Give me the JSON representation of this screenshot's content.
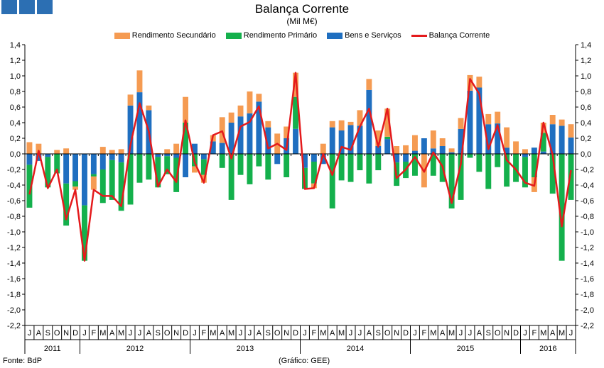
{
  "chart_data": {
    "type": "bar",
    "title": "Balança Corrente",
    "subtitle": "(Mil M€)",
    "ylim": [
      -2.2,
      1.4
    ],
    "ytick_step": 0.2,
    "grid": false,
    "legend_position": "top",
    "months": [
      "J",
      "A",
      "S",
      "O",
      "N",
      "D",
      "J",
      "F",
      "M",
      "A",
      "M",
      "J",
      "J",
      "A",
      "S",
      "O",
      "N",
      "D",
      "J",
      "F",
      "M",
      "A",
      "M",
      "J",
      "J",
      "A",
      "S",
      "O",
      "N",
      "D",
      "J",
      "F",
      "M",
      "A",
      "M",
      "J",
      "J",
      "A",
      "S",
      "O",
      "N",
      "D",
      "J",
      "F",
      "M",
      "A",
      "M",
      "J",
      "J",
      "A",
      "S",
      "O",
      "N",
      "D",
      "J",
      "F",
      "M",
      "A",
      "M",
      "J"
    ],
    "years": [
      {
        "label": "2011",
        "months": 6
      },
      {
        "label": "2012",
        "months": 12
      },
      {
        "label": "2013",
        "months": 12
      },
      {
        "label": "2014",
        "months": 12
      },
      {
        "label": "2015",
        "months": 12
      },
      {
        "label": "2016",
        "months": 6
      }
    ],
    "series": [
      {
        "name": "Rendimento Secundário",
        "type": "bar",
        "color": "#F59B52",
        "values": [
          0.15,
          0.13,
          0,
          0.05,
          0.07,
          -0.04,
          0,
          -0.17,
          0.09,
          0.05,
          0.06,
          0.14,
          0.28,
          0.06,
          0.01,
          0.06,
          0.13,
          0.33,
          -0.08,
          -0.1,
          0.08,
          0.33,
          0.13,
          0.14,
          0.28,
          0.1,
          0.08,
          0.26,
          0.15,
          0.31,
          0,
          -0.06,
          0.13,
          0.08,
          0.13,
          0.04,
          0.2,
          0.14,
          0.2,
          0.36,
          0.1,
          0.11,
          0.2,
          -0.43,
          0.23,
          0.1,
          0.05,
          0.14,
          0.2,
          0.14,
          0.13,
          0.15,
          0.26,
          0.16,
          0.06,
          -0.19,
          0.13,
          0.12,
          0.08,
          0.17
        ]
      },
      {
        "name": "Rendimento Primário",
        "type": "bar",
        "color": "#14B04C",
        "values": [
          -0.55,
          0,
          -0.39,
          -0.25,
          -0.54,
          -0.07,
          -0.71,
          -0.03,
          -0.43,
          -0.51,
          -0.62,
          -0.65,
          -0.37,
          -0.33,
          -0.39,
          -0.23,
          -0.44,
          0.4,
          -0.16,
          -0.2,
          0,
          -0.18,
          -0.59,
          -0.27,
          -0.39,
          -0.16,
          -0.33,
          0,
          -0.3,
          0.41,
          -0.27,
          -0.28,
          0,
          -0.7,
          -0.34,
          -0.36,
          -0.21,
          -0.38,
          -0.21,
          0.03,
          -0.3,
          -0.21,
          -0.28,
          0,
          -0.28,
          -0.36,
          -0.7,
          -0.59,
          -0.05,
          -0.23,
          -0.45,
          -0.17,
          -0.42,
          -0.36,
          -0.39,
          -0.3,
          0.24,
          -0.51,
          -1.37,
          -0.59
        ]
      },
      {
        "name": "Bens e Serviços",
        "type": "bar",
        "color": "#1F6FC0",
        "values": [
          -0.14,
          -0.09,
          -0.04,
          0,
          -0.38,
          -0.35,
          -0.66,
          -0.26,
          -0.2,
          -0.08,
          -0.11,
          0.62,
          0.79,
          0.56,
          -0.04,
          -0.03,
          -0.05,
          -0.3,
          0.13,
          -0.07,
          0.16,
          0.14,
          0.4,
          0.48,
          0.52,
          0.67,
          0.34,
          -0.13,
          0.2,
          0.32,
          -0.18,
          -0.1,
          -0.13,
          0.34,
          0.3,
          0.37,
          0.36,
          0.82,
          0.1,
          0.19,
          -0.11,
          -0.1,
          0.04,
          0.2,
          0.07,
          0.1,
          0.02,
          0.32,
          0.81,
          0.85,
          0.38,
          0.39,
          0.08,
          0,
          -0.04,
          0.08,
          0.03,
          0.38,
          0.36,
          0.21
        ]
      },
      {
        "name": "Balança Corrente",
        "type": "line",
        "color": "#E41A1C",
        "values": [
          -0.52,
          0.04,
          -0.44,
          -0.2,
          -0.84,
          -0.46,
          -1.37,
          -0.46,
          -0.54,
          -0.54,
          -0.67,
          0.11,
          0.65,
          0.29,
          -0.42,
          -0.2,
          -0.36,
          0.43,
          -0.11,
          -0.37,
          0.24,
          0.29,
          -0.06,
          0.35,
          0.41,
          0.61,
          0.07,
          0.13,
          0.05,
          1.04,
          -0.45,
          -0.44,
          0,
          -0.27,
          0.09,
          0.05,
          0.35,
          0.58,
          0.09,
          0.58,
          -0.31,
          -0.2,
          -0.04,
          -0.23,
          0.02,
          -0.16,
          -0.63,
          -0.13,
          0.96,
          0.77,
          0.06,
          0.37,
          -0.08,
          -0.2,
          -0.37,
          -0.41,
          0.4,
          -0.01,
          -0.93,
          -0.21
        ]
      }
    ]
  },
  "footer": {
    "source": "Fonte: BdP",
    "credit": "(Gráfico: GEE)"
  }
}
